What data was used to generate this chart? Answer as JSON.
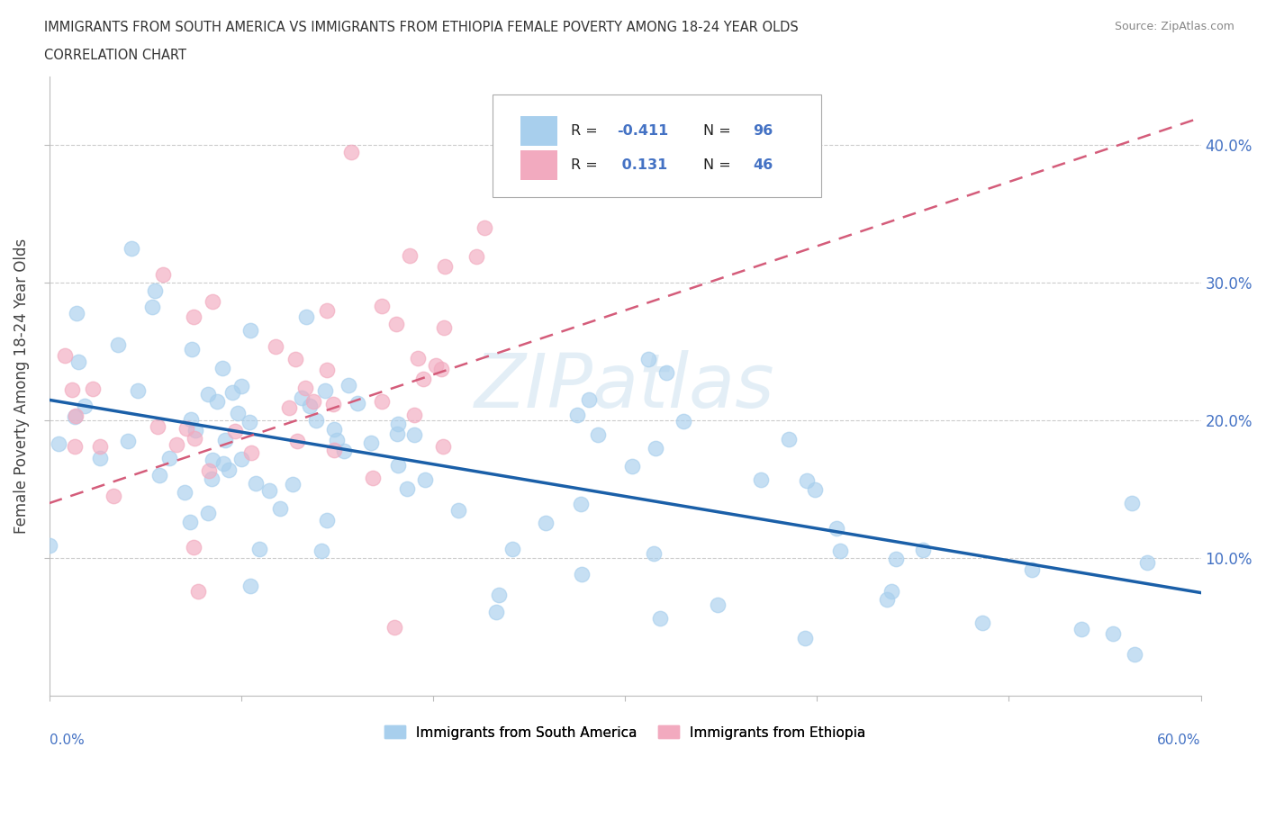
{
  "title_line1": "IMMIGRANTS FROM SOUTH AMERICA VS IMMIGRANTS FROM ETHIOPIA FEMALE POVERTY AMONG 18-24 YEAR OLDS",
  "title_line2": "CORRELATION CHART",
  "source_text": "Source: ZipAtlas.com",
  "watermark": "ZIPatlas",
  "ylabel": "Female Poverty Among 18-24 Year Olds",
  "xlim": [
    0.0,
    0.6
  ],
  "ylim": [
    0.0,
    0.45
  ],
  "right_ytick_vals": [
    0.1,
    0.2,
    0.3,
    0.4
  ],
  "right_ytick_labels": [
    "10.0%",
    "20.0%",
    "30.0%",
    "40.0%"
  ],
  "color_blue": "#A8CFED",
  "color_pink": "#F2AABF",
  "trendline_blue": "#1a5fa8",
  "trendline_pink": "#d45c7a",
  "legend_label1": "Immigrants from South America",
  "legend_label2": "Immigrants from Ethiopia",
  "r1": "-0.411",
  "n1": "96",
  "r2": "0.131",
  "n2": "46",
  "blue_text_color": "#4472C4",
  "dark_text_color": "#222222"
}
